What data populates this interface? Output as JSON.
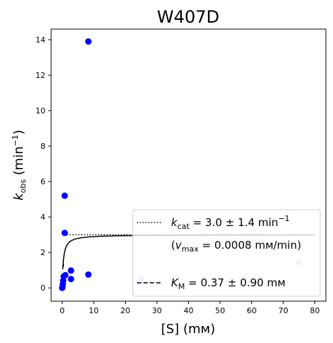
{
  "chart_data": {
    "type": "scatter",
    "title": "W407D",
    "xlabel": "[S] (mм)",
    "ylabel": "kobs (min−1)",
    "ylabel_parts": {
      "k": "k",
      "sub": "obs",
      "unit_open": " (min",
      "sup": "−1",
      "unit_close": ")"
    },
    "xlim": [
      -3.5,
      83.5
    ],
    "ylim": [
      -0.75,
      14.6
    ],
    "x_ticks": [
      0,
      10,
      20,
      30,
      40,
      50,
      60,
      70,
      80
    ],
    "y_ticks": [
      0,
      2,
      4,
      6,
      8,
      10,
      12,
      14
    ],
    "grid": false,
    "series": [
      {
        "kind": "points",
        "color": "#0000ff",
        "points": [
          {
            "x": 8.3,
            "y": 13.9
          },
          {
            "x": 0.8,
            "y": 5.2
          },
          {
            "x": 0.8,
            "y": 3.1
          },
          {
            "x": 0.0,
            "y": 0.0
          },
          {
            "x": 0.1,
            "y": 0.05
          },
          {
            "x": 0.2,
            "y": 0.2
          },
          {
            "x": 0.3,
            "y": 0.4
          },
          {
            "x": 0.5,
            "y": 0.65
          },
          {
            "x": 1.0,
            "y": 0.72
          },
          {
            "x": 2.8,
            "y": 0.5
          },
          {
            "x": 2.8,
            "y": 0.98
          },
          {
            "x": 8.3,
            "y": 0.75
          }
        ]
      },
      {
        "kind": "faded-points",
        "color": "#c8c8ff",
        "points": [
          {
            "x": 25.0,
            "y": 0.52
          },
          {
            "x": 75.0,
            "y": 1.42
          }
        ]
      },
      {
        "kind": "fit-curve",
        "color": "#000000",
        "kcat": 3.0,
        "Km": 0.37,
        "x_start": 0.2,
        "x_end": 80
      },
      {
        "kind": "kcat-line",
        "color": "#000000",
        "style": "dotted",
        "y": 3.0,
        "x_start": 0.6,
        "x_end": 80
      },
      {
        "kind": "km-line",
        "color": "#000000",
        "style": "dashed",
        "x": 0.37,
        "y_start": 1.2,
        "y_end": 1.6
      }
    ],
    "legend": {
      "placement": "lower-right",
      "entries": [
        {
          "style": "dotted",
          "parts": {
            "k": "k",
            "sub": "cat",
            "value": " = 3.0 ± 1.4 min",
            "sup": "−1"
          },
          "extra": {
            "open": "(",
            "v": "v",
            "sub": "max",
            "value": " = 0.0008 mм/min)"
          }
        },
        {
          "style": "dashed",
          "parts": {
            "k": "K",
            "sub": "M",
            "value": " = 0.37 ± 0.90 mм"
          }
        }
      ]
    }
  }
}
